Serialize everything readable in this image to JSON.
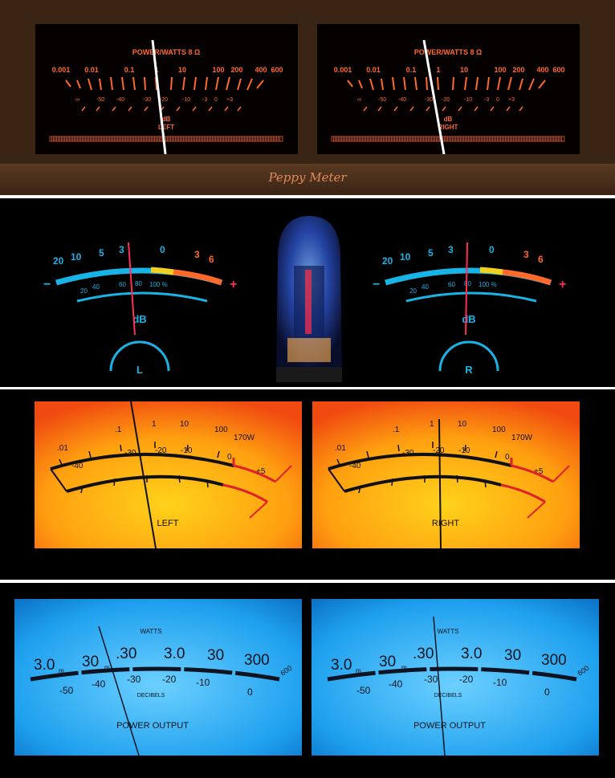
{
  "theme1": {
    "title": "POWER/WATTS 8 Ω",
    "watts": [
      "0.001",
      "0.01",
      "0.1",
      "1",
      "10",
      "100",
      "200",
      "400",
      "600"
    ],
    "db": [
      "∞",
      "-50",
      "-40",
      "-30",
      "-20",
      "-10",
      "-3",
      "0",
      "+3"
    ],
    "unit": "dB",
    "left": "LEFT",
    "right": "RIGHT",
    "brand": "Peppy Meter",
    "colors": {
      "scale": "#ff6a2a",
      "needle": "#ffffff",
      "bezel": "#3a2414"
    }
  },
  "theme2": {
    "top": [
      "20",
      "10",
      "5",
      "3",
      "0",
      "3",
      "6"
    ],
    "bottom": [
      "20",
      "40",
      "60",
      "80",
      "100 %"
    ],
    "minus": "−",
    "plus": "+",
    "unit": "dB",
    "left": "L",
    "right": "R",
    "colors": {
      "cyan": "#19b4e6",
      "orange": "#ff6a2a",
      "needle": "#ff2e5a"
    }
  },
  "theme3": {
    "top": [
      ".01",
      ".1",
      "1",
      "10",
      "100",
      "170W"
    ],
    "mid": [
      "-30",
      "-20",
      "-10",
      "0"
    ],
    "bottom": [
      "-40",
      "+5"
    ],
    "left": "LEFT",
    "right": "RIGHT",
    "colors": {
      "face": "#ffb000",
      "red": "#e0202a",
      "ink": "#111111"
    }
  },
  "theme4": {
    "watts_label": "WATTS",
    "top": [
      "3.0",
      "30",
      "30",
      ".30",
      "3.0",
      "30",
      "300",
      "600"
    ],
    "sub": "m",
    "db": [
      "-50",
      "-40",
      "-30",
      "-20",
      "-10",
      "0"
    ],
    "db_label": "DECIBELS",
    "caption": "POWER OUTPUT",
    "colors": {
      "face": "#1ea0ee",
      "ink": "#0b1420"
    }
  }
}
